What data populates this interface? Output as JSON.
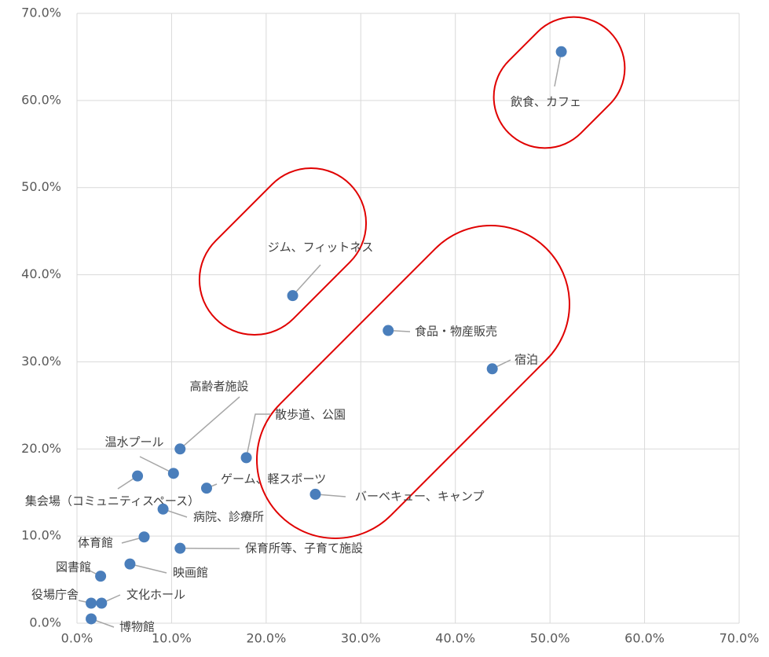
{
  "chart_data": {
    "type": "scatter",
    "series": [
      {
        "color": "#4a7ebb",
        "labels": [
          "飲食、カフェ",
          "ジム、フィットネス",
          "食品・物産販売",
          "宿泊",
          "高齢者施設",
          "散歩道、公園",
          "温水プール",
          "集会場（コミュニティスペース）",
          "ゲーム、軽スポーツ",
          "バーベキュー、キャンプ",
          "病院、診療所",
          "体育館",
          "保育所等、子育て施設",
          "映画館",
          "図書館",
          "役場庁舎",
          "文化ホール",
          "博物館"
        ],
        "x": [
          51.2,
          22.8,
          32.9,
          43.9,
          10.9,
          17.9,
          10.2,
          6.4,
          13.7,
          25.2,
          9.1,
          7.1,
          10.9,
          5.6,
          2.5,
          1.5,
          2.6,
          1.5
        ],
        "values": [
          65.6,
          37.6,
          33.6,
          29.2,
          20.0,
          19.0,
          17.2,
          16.9,
          15.5,
          14.8,
          13.1,
          9.9,
          8.6,
          6.8,
          5.4,
          2.3,
          2.3,
          0.5
        ]
      }
    ],
    "xlim": [
      0,
      70
    ],
    "ylim": [
      0,
      70
    ],
    "xticks": [
      {
        "value": 0,
        "label": "0.0%"
      },
      {
        "value": 10,
        "label": "10.0%"
      },
      {
        "value": 20,
        "label": "20.0%"
      },
      {
        "value": 30,
        "label": "30.0%"
      },
      {
        "value": 40,
        "label": "40.0%"
      },
      {
        "value": 50,
        "label": "50.0%"
      },
      {
        "value": 60,
        "label": "60.0%"
      },
      {
        "value": 70,
        "label": "70.0%"
      }
    ],
    "yticks": [
      {
        "value": 0,
        "label": "0.0%"
      },
      {
        "value": 10,
        "label": "10.0%"
      },
      {
        "value": 20,
        "label": "20.0%"
      },
      {
        "value": 30,
        "label": "30.0%"
      },
      {
        "value": 40,
        "label": "40.0%"
      },
      {
        "value": 50,
        "label": "50.0%"
      },
      {
        "value": 60,
        "label": "60.0%"
      },
      {
        "value": 70,
        "label": "70.0%"
      }
    ],
    "grid": true
  }
}
